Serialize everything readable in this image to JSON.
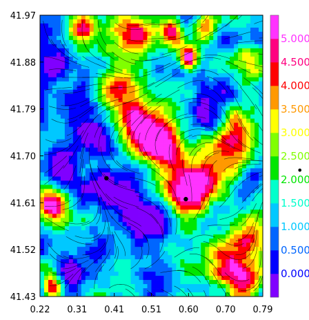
{
  "chart_data": {
    "type": "heatmap",
    "title": "",
    "xlabel": "",
    "ylabel": "",
    "xlim": [
      0.22,
      0.79
    ],
    "ylim": [
      41.43,
      41.97
    ],
    "x_ticks": [
      "0.22",
      "0.31",
      "0.41",
      "0.51",
      "0.60",
      "0.70",
      "0.79"
    ],
    "y_ticks": [
      "41.43",
      "41.52",
      "41.61",
      "41.70",
      "41.79",
      "41.88",
      "41.97"
    ],
    "overlay": "streamlines",
    "colorbar": {
      "placement": "right",
      "levels": [
        "0.000",
        "0.500",
        "1.000",
        "1.500",
        "2.000",
        "2.500",
        "3.000",
        "3.500",
        "4.000",
        "4.500",
        "5.000"
      ],
      "colors": [
        "#8000ff",
        "#0000ff",
        "#0066ff",
        "#00c8ff",
        "#00ffcc",
        "#00e600",
        "#80ff00",
        "#ffff00",
        "#ff9900",
        "#ff0000",
        "#ff0080",
        "#ff33ff"
      ],
      "marker": "•"
    },
    "points": [
      {
        "x": 0.39,
        "y": 41.657
      },
      {
        "x": 0.593,
        "y": 41.617
      }
    ],
    "field_blobs": [
      {
        "x": 0.6,
        "y": 41.89,
        "v": 4.8,
        "s": 0.025
      },
      {
        "x": 0.56,
        "y": 41.935,
        "v": 4.0,
        "s": 0.03
      },
      {
        "x": 0.64,
        "y": 41.945,
        "v": 3.5,
        "s": 0.03
      },
      {
        "x": 0.33,
        "y": 41.945,
        "v": 3.3,
        "s": 0.035
      },
      {
        "x": 0.47,
        "y": 41.94,
        "v": 2.8,
        "s": 0.05
      },
      {
        "x": 0.6,
        "y": 41.64,
        "v": 3.6,
        "s": 0.06
      },
      {
        "x": 0.55,
        "y": 41.705,
        "v": 3.0,
        "s": 0.05
      },
      {
        "x": 0.66,
        "y": 41.66,
        "v": 3.0,
        "s": 0.05
      },
      {
        "x": 0.5,
        "y": 41.73,
        "v": 2.8,
        "s": 0.05
      },
      {
        "x": 0.45,
        "y": 41.76,
        "v": 2.5,
        "s": 0.05
      },
      {
        "x": 0.24,
        "y": 41.615,
        "v": 3.8,
        "s": 0.03
      },
      {
        "x": 0.27,
        "y": 41.59,
        "v": 2.8,
        "s": 0.035
      },
      {
        "x": 0.25,
        "y": 41.445,
        "v": 3.8,
        "s": 0.025
      },
      {
        "x": 0.74,
        "y": 41.45,
        "v": 3.3,
        "s": 0.04
      },
      {
        "x": 0.7,
        "y": 41.5,
        "v": 2.6,
        "s": 0.05
      },
      {
        "x": 0.75,
        "y": 41.88,
        "v": 2.4,
        "s": 0.05
      },
      {
        "x": 0.76,
        "y": 41.55,
        "v": 2.8,
        "s": 0.04
      },
      {
        "x": 0.42,
        "y": 41.84,
        "v": 2.5,
        "s": 0.05
      },
      {
        "x": 0.72,
        "y": 41.74,
        "v": 2.5,
        "s": 0.05
      },
      {
        "x": 0.36,
        "y": 41.74,
        "v": -1.6,
        "s": 0.045
      },
      {
        "x": 0.27,
        "y": 41.69,
        "v": -1.5,
        "s": 0.05
      },
      {
        "x": 0.31,
        "y": 41.8,
        "v": -1.3,
        "s": 0.05
      },
      {
        "x": 0.4,
        "y": 41.64,
        "v": -1.6,
        "s": 0.04
      },
      {
        "x": 0.37,
        "y": 41.52,
        "v": -1.4,
        "s": 0.04
      },
      {
        "x": 0.32,
        "y": 41.47,
        "v": -1.3,
        "s": 0.04
      },
      {
        "x": 0.51,
        "y": 41.56,
        "v": -1.4,
        "s": 0.05
      },
      {
        "x": 0.63,
        "y": 41.78,
        "v": -1.2,
        "s": 0.05
      },
      {
        "x": 0.71,
        "y": 41.82,
        "v": -1.3,
        "s": 0.04
      },
      {
        "x": 0.75,
        "y": 41.64,
        "v": -1.3,
        "s": 0.04
      },
      {
        "x": 0.5,
        "y": 41.45,
        "v": -1.2,
        "s": 0.05
      },
      {
        "x": 0.26,
        "y": 41.88,
        "v": -1.1,
        "s": 0.04
      },
      {
        "x": 0.45,
        "y": 41.61,
        "v": -1.3,
        "s": 0.035
      }
    ]
  }
}
